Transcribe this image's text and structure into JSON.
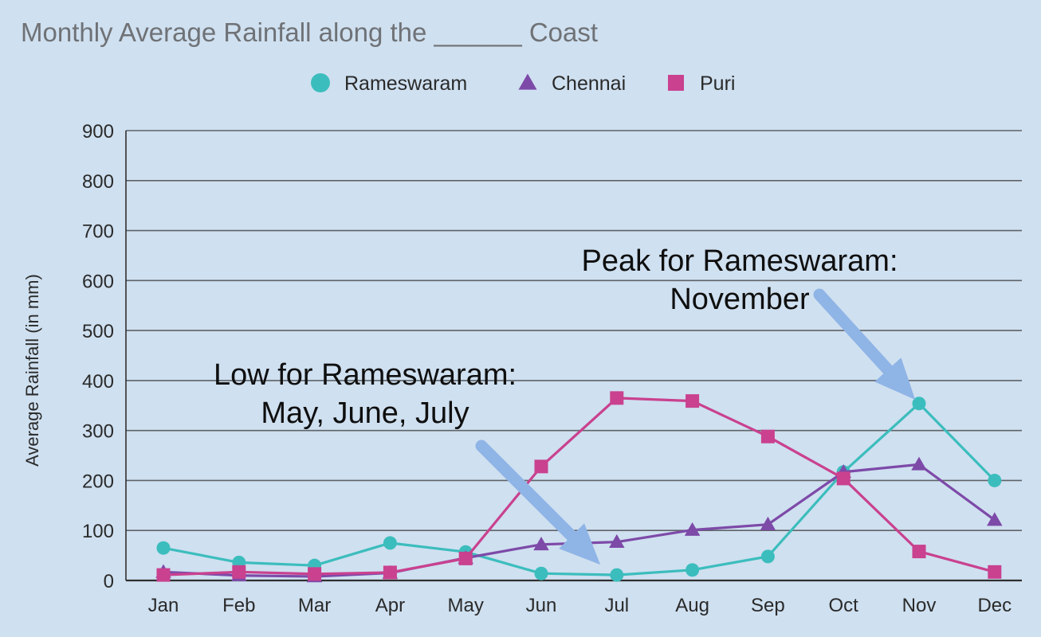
{
  "chart_data": {
    "type": "line",
    "title": "Monthly Average Rainfall along the ______ Coast",
    "xlabel": "",
    "ylabel": "Average Rainfall (in mm)",
    "categories": [
      "Jan",
      "Feb",
      "Mar",
      "Apr",
      "May",
      "Jun",
      "Jul",
      "Aug",
      "Sep",
      "Oct",
      "Nov",
      "Dec"
    ],
    "ylim": [
      0,
      900
    ],
    "yticks": [
      0,
      100,
      200,
      300,
      400,
      500,
      600,
      700,
      800,
      900
    ],
    "grid": true,
    "legend_position": "top-center",
    "series": [
      {
        "name": "Rameswaram",
        "marker": "circle",
        "color": "#3cbdbd",
        "values": [
          65,
          36,
          30,
          75,
          57,
          14,
          11,
          21,
          48,
          217,
          354,
          200
        ]
      },
      {
        "name": "Chennai",
        "marker": "triangle",
        "color": "#7d4aa8",
        "values": [
          17,
          10,
          8,
          15,
          45,
          72,
          77,
          101,
          112,
          217,
          232,
          121
        ]
      },
      {
        "name": "Puri",
        "marker": "square",
        "color": "#c9418f",
        "values": [
          11,
          17,
          13,
          16,
          44,
          228,
          365,
          359,
          288,
          204,
          58,
          17
        ]
      }
    ],
    "annotations": [
      {
        "lines": [
          "Peak for Rameswaram:",
          "November"
        ],
        "target_category": "Nov",
        "target_value": 354
      },
      {
        "lines": [
          "Low for Rameswaram:",
          "May, June, July"
        ],
        "target_category": "Jul",
        "target_value": 11
      }
    ]
  }
}
